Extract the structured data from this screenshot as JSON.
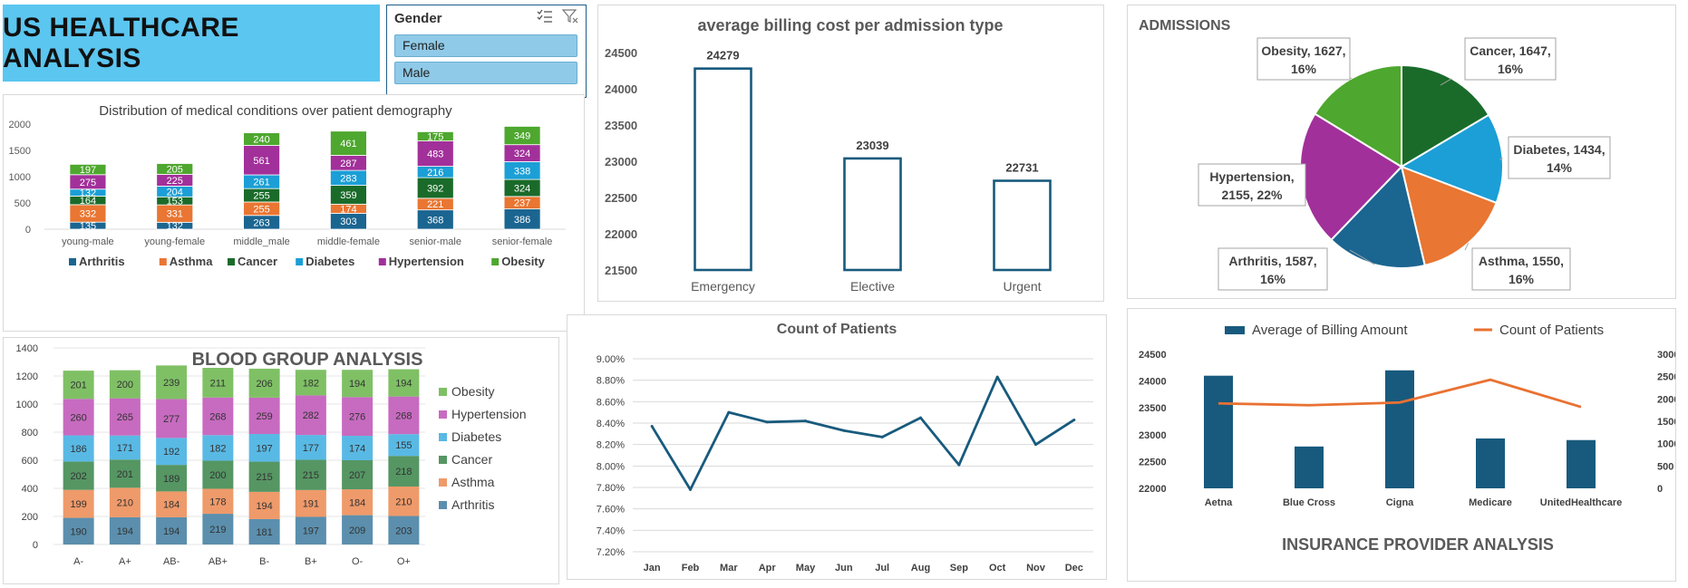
{
  "dashboard": {
    "title": "US HEALTHCARE ANALYSIS"
  },
  "slicer": {
    "header": "Gender",
    "items": [
      "Female",
      "Male"
    ],
    "icons": [
      "multi-select-icon",
      "clear-filter-icon"
    ]
  },
  "colors": {
    "Arthritis": "#1b6591",
    "Asthma": "#e97632",
    "Cancer": "#1a6b2a",
    "Diabetes": "#1b9fd6",
    "Hypertension": "#a2309a",
    "Obesity": "#4ea72e",
    "navy": "#185a7d",
    "orange": "#e97132"
  },
  "chart_data": [
    {
      "id": "demography",
      "type": "bar",
      "stacked": true,
      "title": "Distribution of medical conditions over patient demography",
      "categories": [
        "young-male",
        "young-female",
        "middle_male",
        "middle-female",
        "senior-male",
        "senior-female"
      ],
      "series": [
        {
          "name": "Arthritis",
          "values": [
            135,
            132,
            263,
            303,
            368,
            386
          ]
        },
        {
          "name": "Asthma",
          "values": [
            332,
            331,
            255,
            174,
            221,
            237
          ]
        },
        {
          "name": "Cancer",
          "values": [
            164,
            153,
            255,
            359,
            392,
            324
          ]
        },
        {
          "name": "Diabetes",
          "values": [
            132,
            204,
            261,
            283,
            216,
            338
          ]
        },
        {
          "name": "Hypertension",
          "values": [
            275,
            225,
            561,
            287,
            483,
            324
          ]
        },
        {
          "name": "Obesity",
          "values": [
            197,
            205,
            240,
            461,
            175,
            349
          ]
        }
      ],
      "ylim": [
        0,
        2000
      ],
      "yticks": [
        0,
        500,
        1000,
        1500,
        2000
      ],
      "legend": "bottom"
    },
    {
      "id": "billing_admission",
      "type": "bar",
      "title": "average billing cost per admission type",
      "categories": [
        "Emergency",
        "Elective",
        "Urgent"
      ],
      "values": [
        24279,
        23039,
        22731
      ],
      "ylim": [
        21500,
        24500
      ],
      "yticks": [
        21500,
        22000,
        22500,
        23000,
        23500,
        24000,
        24500
      ]
    },
    {
      "id": "admissions",
      "type": "pie",
      "title": "ADMISSIONS",
      "slices": [
        {
          "name": "Cancer",
          "value": 1647,
          "label": "Cancer, 1647,\n16%"
        },
        {
          "name": "Diabetes",
          "value": 1434,
          "label": "Diabetes, 1434,\n14%"
        },
        {
          "name": "Asthma",
          "value": 1550,
          "label": "Asthma, 1550,\n16%"
        },
        {
          "name": "Arthritis",
          "value": 1587,
          "label": "Arthritis, 1587,\n16%"
        },
        {
          "name": "Hypertension",
          "value": 2155,
          "label": "Hypertension,\n2155, 22%"
        },
        {
          "name": "Obesity",
          "value": 1627,
          "label": "Obesity, 1627,\n16%"
        }
      ]
    },
    {
      "id": "blood_group",
      "type": "bar",
      "stacked": true,
      "title": "BLOOD GROUP ANALYSIS",
      "categories": [
        "A-",
        "A+",
        "AB-",
        "AB+",
        "B-",
        "B+",
        "O-",
        "O+"
      ],
      "series": [
        {
          "name": "Arthritis",
          "values": [
            190,
            194,
            194,
            219,
            181,
            197,
            209,
            203
          ]
        },
        {
          "name": "Asthma",
          "values": [
            199,
            210,
            184,
            178,
            194,
            191,
            184,
            210
          ]
        },
        {
          "name": "Cancer",
          "values": [
            202,
            201,
            189,
            200,
            215,
            215,
            207,
            218
          ]
        },
        {
          "name": "Diabetes",
          "values": [
            186,
            171,
            192,
            182,
            197,
            177,
            174,
            155
          ]
        },
        {
          "name": "Hypertension",
          "values": [
            260,
            265,
            277,
            268,
            259,
            282,
            276,
            268
          ]
        },
        {
          "name": "Obesity",
          "values": [
            201,
            200,
            239,
            211,
            206,
            182,
            194,
            194
          ]
        }
      ],
      "ylim": [
        0,
        1400
      ],
      "yticks": [
        0,
        200,
        400,
        600,
        800,
        1000,
        1200,
        1400
      ],
      "legend": "right"
    },
    {
      "id": "count_patients",
      "type": "line",
      "title": "Count of Patients",
      "x": [
        "Jan",
        "Feb",
        "Mar",
        "Apr",
        "May",
        "Jun",
        "Jul",
        "Aug",
        "Sep",
        "Oct",
        "Nov",
        "Dec"
      ],
      "values": [
        8.37,
        7.78,
        8.5,
        8.41,
        8.42,
        8.33,
        8.27,
        8.45,
        8.01,
        8.83,
        8.2,
        8.43
      ],
      "ylim": [
        7.2,
        9.0
      ],
      "yticks": [
        "7.20%",
        "7.40%",
        "7.60%",
        "7.80%",
        "8.00%",
        "8.20%",
        "8.40%",
        "8.60%",
        "8.80%",
        "9.00%"
      ]
    },
    {
      "id": "insurance",
      "type": "bar",
      "title": "INSURANCE PROVIDER ANALYSIS",
      "categories": [
        "Aetna",
        "Blue Cross",
        "Cigna",
        "Medicare",
        "UnitedHealthcare"
      ],
      "series": [
        {
          "name": "Average of  Billing Amount",
          "type": "bar",
          "axis": "left",
          "values": [
            24100,
            22780,
            24200,
            22930,
            22900
          ]
        },
        {
          "name": "Count of Patients",
          "type": "line",
          "axis": "right",
          "values": [
            1900,
            1860,
            1920,
            2430,
            1820
          ]
        }
      ],
      "ylim_left": [
        22000,
        24500
      ],
      "yticks_left": [
        22000,
        22500,
        23000,
        23500,
        24000,
        24500
      ],
      "ylim_right": [
        0,
        3000
      ],
      "yticks_right": [
        0,
        500,
        1000,
        1500,
        2000,
        2500,
        3000
      ],
      "legend": "top"
    }
  ]
}
